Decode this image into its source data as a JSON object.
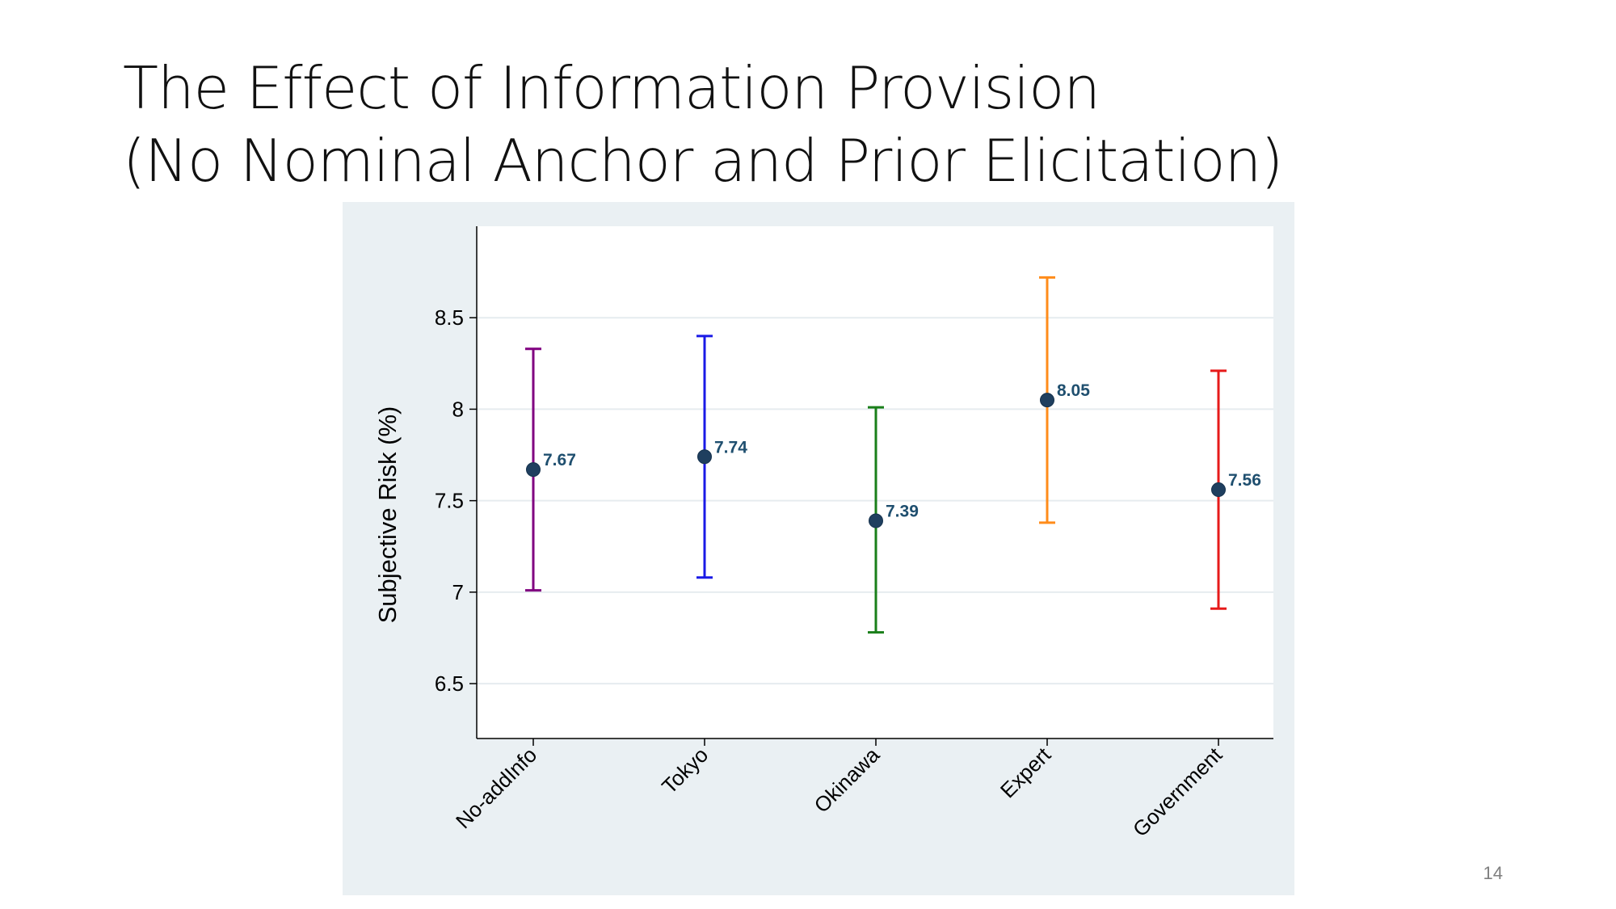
{
  "slide": {
    "title_line1": "The Effect of Information Provision",
    "title_line2": "(No Nominal Anchor and Prior Elicitation)",
    "page_number": "14"
  },
  "chart_data": {
    "type": "scatter",
    "title": "",
    "xlabel": "",
    "ylabel": "Subjective Risk (%)",
    "ylim": [
      6.2,
      9.0
    ],
    "yticks": [
      6.5,
      7,
      7.5,
      8,
      8.5
    ],
    "ytick_labels": [
      "6.5",
      "7",
      "7.5",
      "8",
      "8.5"
    ],
    "grid": true,
    "categories": [
      "No-addInfo",
      "Tokyo",
      "Okinawa",
      "Expert",
      "Government"
    ],
    "values": [
      7.67,
      7.74,
      7.39,
      8.05,
      7.56
    ],
    "value_labels": [
      "7.67",
      "7.74",
      "7.39",
      "8.05",
      "7.56"
    ],
    "ci_lower": [
      7.01,
      7.08,
      6.78,
      7.38,
      6.91
    ],
    "ci_upper": [
      8.33,
      8.4,
      8.01,
      8.72,
      8.21
    ],
    "colors": {
      "ci": [
        "#800080",
        "#1a1ae6",
        "#1a7f1a",
        "#ff8c1a",
        "#e61a1a"
      ],
      "marker": "#1f3f5f",
      "label": "#1f4f6f",
      "grid": "#e6ecef",
      "plot_bg": "#ffffff",
      "axis": "#000000"
    }
  }
}
